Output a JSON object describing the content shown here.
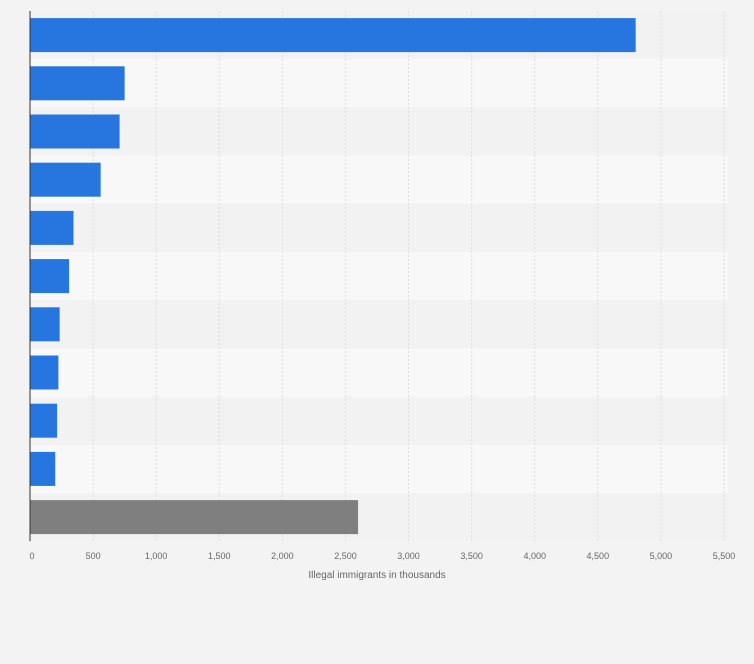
{
  "chart_data": {
    "type": "bar",
    "orientation": "horizontal",
    "xlabel": "Illegal immigrants in thousands",
    "xlim": [
      0,
      5500
    ],
    "ticks": [
      0,
      500,
      1000,
      1500,
      2000,
      2500,
      3000,
      3500,
      4000,
      4500,
      5000,
      5500
    ],
    "tick_labels": [
      "0",
      "500",
      "1,000",
      "1,500",
      "2,000",
      "2,500",
      "3,000",
      "3,500",
      "4,000",
      "4,500",
      "5,000",
      "5,500"
    ],
    "grid": "vertical",
    "values": [
      4800,
      750,
      710,
      560,
      345,
      310,
      235,
      225,
      215,
      200,
      2600
    ],
    "colors": [
      "#2776df",
      "#2776df",
      "#2776df",
      "#2776df",
      "#2776df",
      "#2776df",
      "#2776df",
      "#2776df",
      "#2776df",
      "#2776df",
      "#7f7f7f"
    ],
    "row_colors": [
      "#f2f2f2",
      "#f8f8f8"
    ],
    "grid_color": "#dddddd",
    "axis_color": "#333333",
    "text_color": "#666666"
  }
}
